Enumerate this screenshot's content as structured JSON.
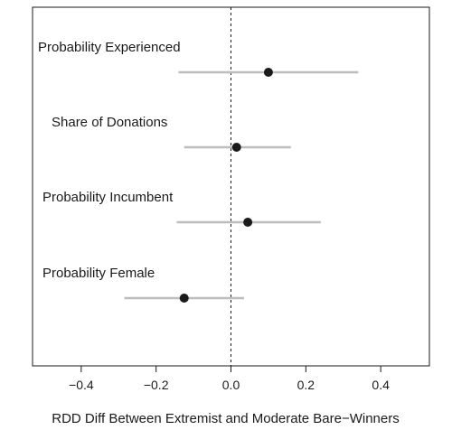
{
  "chart_data": {
    "type": "scatter",
    "title": "",
    "xlabel": "RDD Diff Between Extremist and Moderate Bare−Winners",
    "ylabel": "",
    "xlim": [
      -0.53,
      0.53
    ],
    "xticks": [
      -0.4,
      -0.2,
      0.0,
      0.2,
      0.4
    ],
    "xtick_labels": [
      "−0.4",
      "−0.2",
      "0.0",
      "0.2",
      "0.4"
    ],
    "reference_line": {
      "x": 0,
      "style": "dashed"
    },
    "grid": false,
    "legend": "none",
    "points": [
      {
        "label": "Probability Experienced",
        "estimate": 0.1,
        "ci_low": -0.14,
        "ci_high": 0.34
      },
      {
        "label": "Share of Donations",
        "estimate": 0.015,
        "ci_low": -0.125,
        "ci_high": 0.16
      },
      {
        "label": "Probability Incumbent",
        "estimate": 0.045,
        "ci_low": -0.145,
        "ci_high": 0.24
      },
      {
        "label": "Probability Female",
        "estimate": -0.125,
        "ci_low": -0.285,
        "ci_high": 0.035
      }
    ],
    "colors": {
      "point": "#1a1a1a",
      "interval": "#bdbdbd",
      "frame": "#1a1a1a"
    }
  }
}
